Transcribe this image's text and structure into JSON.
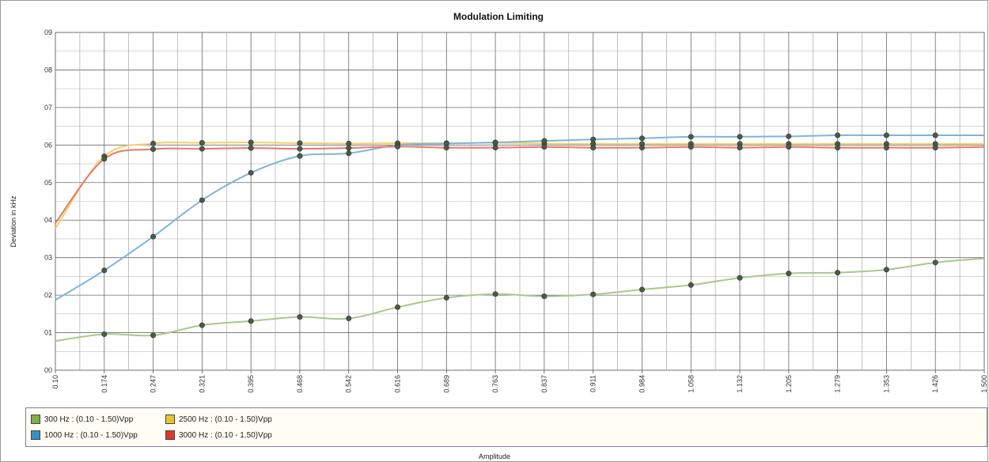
{
  "chart_data": {
    "type": "line",
    "title": "Modulation Limiting",
    "xlabel": "Amplitude",
    "ylabel": "Deviation in kHz",
    "x": [
      "0.10",
      "0.174",
      "0.247",
      "0.321",
      "0.395",
      "0.468",
      "0.542",
      "0.616",
      "0.689",
      "0.763",
      "0.837",
      "0.911",
      "0.984",
      "1.058",
      "1.132",
      "1.205",
      "1.279",
      "1.353",
      "1.426",
      "1.500"
    ],
    "y_ticks": [
      "00",
      "01",
      "02",
      "03",
      "04",
      "05",
      "06",
      "07",
      "08",
      "09"
    ],
    "ylim": [
      0,
      0.9
    ],
    "grid": true,
    "legend_placement": "bottom",
    "series": [
      {
        "name": "300 Hz : (0.10 - 1.50)Vpp",
        "color": "#7fae4a",
        "line_color": "#a8c98a",
        "values": [
          0.078,
          0.096,
          0.093,
          0.12,
          0.131,
          0.142,
          0.138,
          0.168,
          0.193,
          0.203,
          0.197,
          0.202,
          0.215,
          0.227,
          0.246,
          0.258,
          0.26,
          0.268,
          0.287,
          0.298
        ]
      },
      {
        "name": "2500 Hz : (0.10 - 1.50)Vpp",
        "color": "#e8c432",
        "line_color": "#f0d36a",
        "values": [
          0.378,
          0.57,
          0.604,
          0.606,
          0.607,
          0.605,
          0.604,
          0.605,
          0.605,
          0.606,
          0.604,
          0.603,
          0.603,
          0.603,
          0.603,
          0.603,
          0.603,
          0.603,
          0.603,
          0.603
        ]
      },
      {
        "name": "1000 Hz : (0.10 - 1.50)Vpp",
        "color": "#3a8ec4",
        "line_color": "#7eb6da",
        "values": [
          0.187,
          0.266,
          0.356,
          0.453,
          0.526,
          0.571,
          0.578,
          0.6,
          0.604,
          0.607,
          0.611,
          0.615,
          0.618,
          0.622,
          0.622,
          0.623,
          0.626,
          0.626,
          0.626,
          0.626
        ]
      },
      {
        "name": "3000 Hz : (0.10 - 1.50)Vpp",
        "color": "#d93a2c",
        "line_color": "#e9786a",
        "values": [
          0.392,
          0.563,
          0.589,
          0.59,
          0.592,
          0.59,
          0.592,
          0.596,
          0.593,
          0.593,
          0.595,
          0.593,
          0.593,
          0.595,
          0.593,
          0.595,
          0.593,
          0.593,
          0.593,
          0.595
        ]
      }
    ]
  }
}
